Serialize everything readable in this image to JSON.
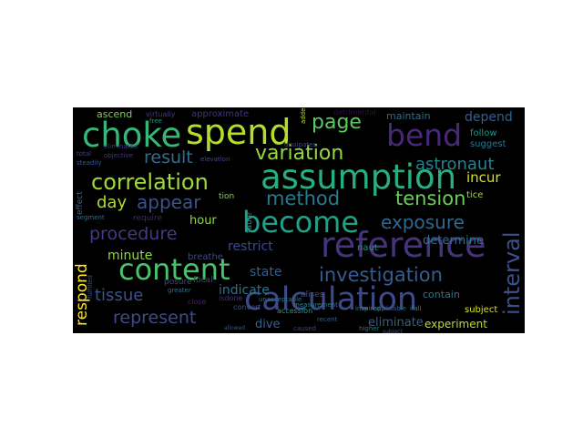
{
  "cloud": {
    "background": "#000000",
    "words": [
      {
        "text": "spend",
        "color": "#b5de2b"
      },
      {
        "text": "choke",
        "color": "#35b779"
      },
      {
        "text": "bend",
        "color": "#482878"
      },
      {
        "text": "assumption",
        "color": "#29af7f"
      },
      {
        "text": "reference",
        "color": "#46337e"
      },
      {
        "text": "become",
        "color": "#1fa187"
      },
      {
        "text": "content",
        "color": "#4ac16d"
      },
      {
        "text": "calculation",
        "color": "#3e4989"
      },
      {
        "text": "correlation",
        "color": "#a0da39"
      },
      {
        "text": "variation",
        "color": "#95d840"
      },
      {
        "text": "method",
        "color": "#2a788e"
      },
      {
        "text": "tension",
        "color": "#6ccd5a"
      },
      {
        "text": "appear",
        "color": "#3b528b"
      },
      {
        "text": "investigation",
        "color": "#365c8d"
      },
      {
        "text": "exposure",
        "color": "#31688e"
      },
      {
        "text": "result",
        "color": "#2e6e8e"
      },
      {
        "text": "procedure",
        "color": "#443983"
      },
      {
        "text": "represent",
        "color": "#3e4a89"
      },
      {
        "text": "tissue",
        "color": "#3a548c"
      },
      {
        "text": "page",
        "color": "#5ec962"
      },
      {
        "text": "day",
        "color": "#addc30"
      },
      {
        "text": "interval",
        "color": "#3b518b"
      },
      {
        "text": "astronaut",
        "color": "#26828e"
      },
      {
        "text": "respond",
        "color": "#fde725"
      },
      {
        "text": "minute",
        "color": "#90d743"
      },
      {
        "text": "hour",
        "color": "#8fd744"
      },
      {
        "text": "restrict",
        "color": "#3e4989"
      },
      {
        "text": "indicate",
        "color": "#2c728e"
      },
      {
        "text": "state",
        "color": "#355f8d"
      },
      {
        "text": "incur",
        "color": "#d2e21b"
      },
      {
        "text": "depend",
        "color": "#365d8d"
      },
      {
        "text": "determine",
        "color": "#2c718e"
      },
      {
        "text": "maintain",
        "color": "#2e6d8e"
      },
      {
        "text": "eliminate",
        "color": "#365d8d"
      },
      {
        "text": "experiment",
        "color": "#b8de29"
      },
      {
        "text": "dive",
        "color": "#34618d"
      },
      {
        "text": "contain",
        "color": "#2a778e"
      },
      {
        "text": "subject",
        "color": "#d8e219"
      },
      {
        "text": "approximate",
        "color": "#46307e"
      },
      {
        "text": "ascend",
        "color": "#7ad151"
      },
      {
        "text": "follow",
        "color": "#1f958b"
      },
      {
        "text": "suggest",
        "color": "#2a768e"
      },
      {
        "text": "breathe",
        "color": "#3f4889"
      },
      {
        "text": "posure",
        "color": "#414487"
      },
      {
        "text": "naut",
        "color": "#20928c"
      },
      {
        "text": "tice",
        "color": "#a2da37"
      },
      {
        "text": "tion",
        "color": "#7fd34e"
      },
      {
        "text": "require",
        "color": "#482475"
      },
      {
        "text": "focal",
        "color": "#404688"
      },
      {
        "text": "convert",
        "color": "#3b528b"
      },
      {
        "text": "accession",
        "color": "#1f9e89"
      },
      {
        "text": "table",
        "color": "#23898e"
      },
      {
        "text": "virtually",
        "color": "#443a83"
      },
      {
        "text": "detrimental",
        "color": "#440154"
      },
      {
        "text": "dissipates",
        "color": "#3f4788"
      },
      {
        "text": "measurement",
        "color": "#287c8e"
      },
      {
        "text": "added",
        "color": "#addc30"
      },
      {
        "text": "elevation",
        "color": "#3d4e8a"
      },
      {
        "text": "close",
        "color": "#482173"
      },
      {
        "text": "total",
        "color": "#404387"
      },
      {
        "text": "effect",
        "color": "#31688e"
      },
      {
        "text": "segment",
        "color": "#2d708e"
      },
      {
        "text": "steadily",
        "color": "#37598c"
      },
      {
        "text": "isdone",
        "color": "#46327e"
      },
      {
        "text": "eliminated",
        "color": "#453581"
      },
      {
        "text": "greater",
        "color": "#2e6f8e"
      },
      {
        "text": "alises",
        "color": "#3f4788"
      },
      {
        "text": "objective",
        "color": "#453882"
      },
      {
        "text": "fulfilled",
        "color": "#3a548c"
      },
      {
        "text": "inspired",
        "color": "#25848e"
      },
      {
        "text": "recent",
        "color": "#355e8d"
      },
      {
        "text": "caused",
        "color": "#404588"
      },
      {
        "text": "higher",
        "color": "#2a788e"
      },
      {
        "text": "subject",
        "color": "#3d4d8a"
      },
      {
        "text": "applicable",
        "color": "#34618d"
      },
      {
        "text": "free",
        "color": "#1f988b"
      },
      {
        "text": "ifall",
        "color": "#238a8d"
      },
      {
        "text": "allowed",
        "color": "#39558c"
      },
      {
        "text": "unacceptable",
        "color": "#2d708e"
      }
    ]
  }
}
